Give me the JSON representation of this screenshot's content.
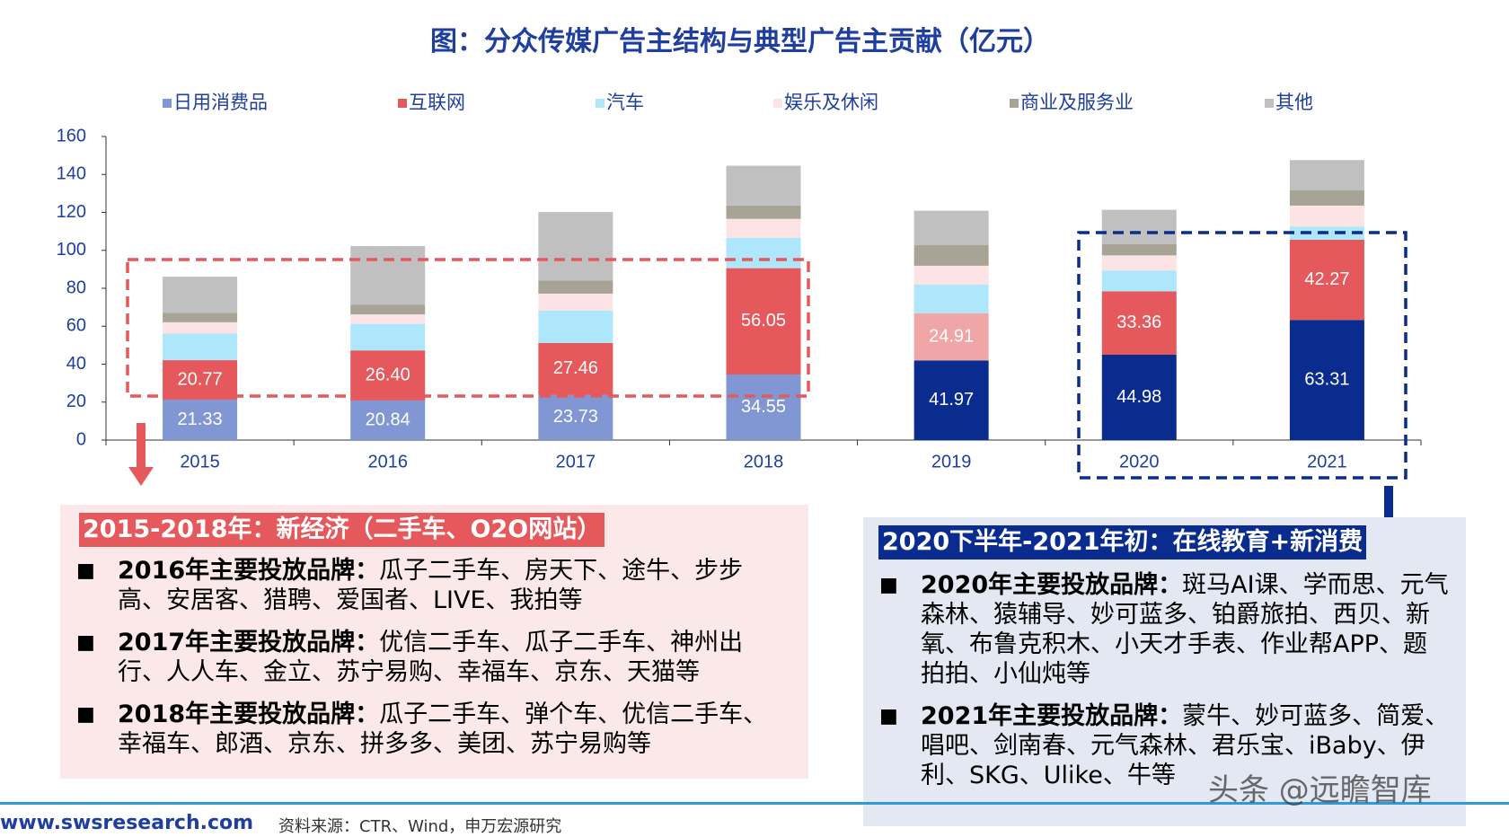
{
  "chart_data": {
    "type": "stacked_bar",
    "title": "图：分众传媒广告主结构与典型广告主贡献（亿元）",
    "categories": [
      "2015",
      "2016",
      "2017",
      "2018",
      "2019",
      "2020",
      "2021"
    ],
    "series": [
      {
        "name": "日用消费品",
        "color": "#8097d3",
        "colors": [
          "#8097d3",
          "#8097d3",
          "#8097d3",
          "#8097d3",
          "#0a2c8e",
          "#0a2c8e",
          "#0a2c8e"
        ],
        "values": [
          21.33,
          20.84,
          23.73,
          34.55,
          41.97,
          44.98,
          63.31
        ],
        "value_labels": [
          "21.33",
          "20.84",
          "23.73",
          "34.55",
          "41.97",
          "44.98",
          "63.31"
        ]
      },
      {
        "name": "互联网",
        "color": "#e5585c",
        "colors": [
          "#e5585c",
          "#e5585c",
          "#e5585c",
          "#e5585c",
          "#f0a6a6",
          "#e5585c",
          "#e5585c"
        ],
        "values": [
          20.77,
          26.4,
          27.46,
          56.05,
          24.91,
          33.36,
          42.27
        ],
        "value_labels": [
          "20.77",
          "26.40",
          "27.46",
          "56.05",
          "24.91",
          "33.36",
          "42.27"
        ]
      },
      {
        "name": "汽车",
        "color": "#aee6fb",
        "values": [
          14,
          14,
          17,
          16,
          15,
          11,
          7
        ]
      },
      {
        "name": "娱乐及休闲",
        "color": "#fbe3e6",
        "values": [
          6,
          5,
          9,
          10,
          10,
          8,
          11
        ]
      },
      {
        "name": "商业及服务业",
        "color": "#a7a496",
        "values": [
          5,
          5,
          7,
          7,
          11,
          6,
          8
        ]
      },
      {
        "name": "其他",
        "color": "#c0c0c0",
        "values": [
          19,
          31,
          36,
          21,
          18,
          18,
          16
        ]
      }
    ],
    "ylim": [
      0,
      160
    ],
    "yticks": [
      0,
      20,
      40,
      60,
      80,
      100,
      120,
      140,
      160
    ]
  },
  "panels": [
    {
      "header": "2015-2018年：新经济（二手车、O2O网站）",
      "items": [
        {
          "label": "2016年主要投放品牌：",
          "text": "瓜子二手车、房天下、途牛、步步高、安居客、猎聘、爱国者、LIVE、我拍等"
        },
        {
          "label": "2017年主要投放品牌：",
          "text": "优信二手车、瓜子二手车、神州出行、人人车、金立、苏宁易购、幸福车、京东、天猫等"
        },
        {
          "label": "2018年主要投放品牌：",
          "text": "瓜子二手车、弹个车、优信二手车、幸福车、郎酒、京东、拼多多、美团、苏宁易购等"
        }
      ]
    },
    {
      "header": "2020下半年-2021年初：在线教育+新消费",
      "items": [
        {
          "label": "2020年主要投放品牌：",
          "text": "斑马AI课、学而思、元气森林、猿辅导、妙可蓝多、铂爵旅拍、西贝、新氧、布鲁克积木、小天才手表、作业帮APP、题拍拍、小仙炖等"
        },
        {
          "label": "2021年主要投放品牌：",
          "text": "蒙牛、妙可蓝多、简爱、唱吧、剑南春、元气森林、君乐宝、iBaby、伊利、SKG、Ulike、牛等"
        }
      ]
    }
  ],
  "footer": {
    "site": "www.swsresearch.com",
    "source": "资料来源：CTR、Wind，申万宏源研究"
  },
  "watermark": "头条 @远瞻智库"
}
